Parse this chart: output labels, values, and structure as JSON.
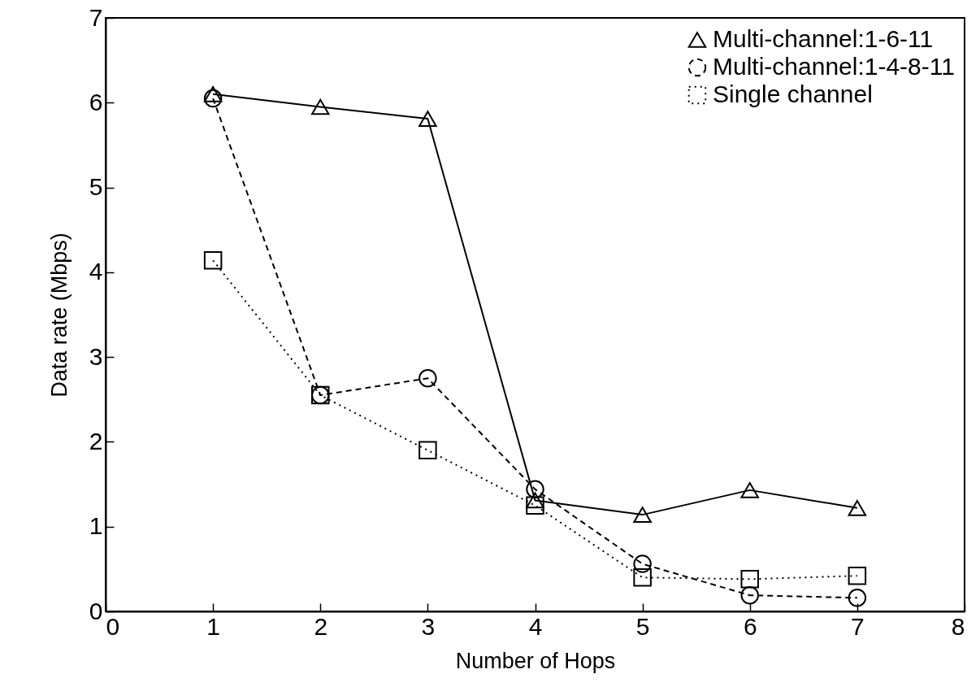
{
  "chart_data": {
    "type": "line",
    "xlabel": "Number of Hops",
    "ylabel": "Data rate (Mbps)",
    "x": [
      1,
      2,
      3,
      4,
      5,
      6,
      7
    ],
    "series": [
      {
        "name": "Multi-channel:1-6-11",
        "color": "#000000",
        "marker": "triangle",
        "line_style": "solid",
        "values": [
          6.1,
          5.95,
          5.81,
          1.31,
          1.14,
          1.43,
          1.22
        ]
      },
      {
        "name": "Multi-channel:1-4-8-11",
        "color": "#000000",
        "marker": "circle",
        "line_style": "dashed",
        "values": [
          6.05,
          2.55,
          2.75,
          1.44,
          0.56,
          0.19,
          0.16
        ]
      },
      {
        "name": "Single channel",
        "color": "#000000",
        "marker": "square",
        "line_style": "dotted",
        "values": [
          4.14,
          2.55,
          1.9,
          1.25,
          0.4,
          0.38,
          0.42
        ]
      }
    ],
    "xlim": [
      0,
      8
    ],
    "xticks": [
      0,
      1,
      2,
      3,
      4,
      5,
      6,
      7,
      8
    ],
    "ylim": [
      0,
      7
    ],
    "yticks": [
      0,
      1,
      2,
      3,
      4,
      5,
      6,
      7
    ],
    "grid": false,
    "legend": "top right"
  }
}
